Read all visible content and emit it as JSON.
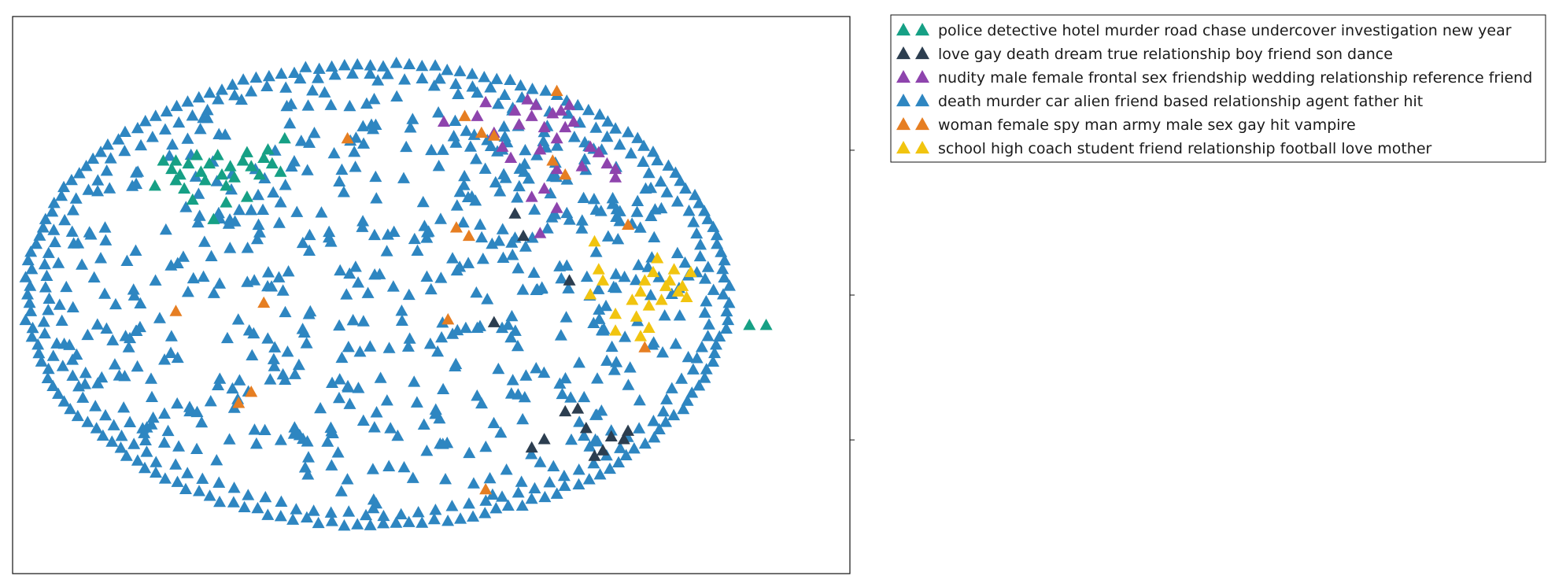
{
  "chart_data": {
    "type": "scatter",
    "marker": "triangle",
    "xlim": [
      -1,
      1
    ],
    "ylim": [
      -1,
      1
    ],
    "xticks": [],
    "yticks": [
      -0.52,
      0.0,
      0.52
    ],
    "grid": false,
    "legend_position": "outside-top-right",
    "ellipse_cluster": {
      "center": [
        -0.13,
        0.0
      ],
      "rx": 0.84,
      "ry": 0.83,
      "series": "death murder car alien friend based relationship agent father hit"
    },
    "series": [
      {
        "name": "police detective hotel murder road chase undercover investigation new year",
        "color": "#16a085",
        "points": [
          [
            -0.64,
            0.48
          ],
          [
            -0.62,
            0.45
          ],
          [
            -0.61,
            0.48
          ],
          [
            -0.6,
            0.43
          ],
          [
            -0.58,
            0.47
          ],
          [
            -0.56,
            0.5
          ],
          [
            -0.55,
            0.44
          ],
          [
            -0.54,
            0.41
          ],
          [
            -0.53,
            0.47
          ],
          [
            -0.51,
            0.5
          ],
          [
            -0.5,
            0.43
          ],
          [
            -0.49,
            0.39
          ],
          [
            -0.48,
            0.46
          ],
          [
            -0.47,
            0.42
          ],
          [
            -0.45,
            0.48
          ],
          [
            -0.44,
            0.51
          ],
          [
            -0.43,
            0.46
          ],
          [
            -0.41,
            0.43
          ],
          [
            -0.4,
            0.49
          ],
          [
            -0.38,
            0.47
          ],
          [
            -0.57,
            0.34
          ],
          [
            -0.59,
            0.38
          ],
          [
            -0.61,
            0.41
          ],
          [
            -0.49,
            0.33
          ],
          [
            -0.52,
            0.27
          ],
          [
            -0.35,
            0.56
          ],
          [
            -0.44,
            0.35
          ],
          [
            -0.66,
            0.39
          ],
          [
            -0.39,
            0.52
          ],
          [
            -0.36,
            0.44
          ],
          [
            0.76,
            -0.11
          ],
          [
            0.8,
            -0.11
          ]
        ]
      },
      {
        "name": "love gay death dream true relationship boy friend son dance",
        "color": "#2c3e50",
        "points": [
          [
            0.2,
            0.29
          ],
          [
            0.22,
            0.21
          ],
          [
            0.33,
            0.05
          ],
          [
            0.15,
            -0.1
          ],
          [
            0.24,
            -0.55
          ],
          [
            0.27,
            -0.52
          ],
          [
            0.32,
            -0.42
          ],
          [
            0.35,
            -0.41
          ],
          [
            0.37,
            -0.48
          ],
          [
            0.39,
            -0.58
          ],
          [
            0.41,
            -0.56
          ],
          [
            0.43,
            -0.51
          ],
          [
            0.46,
            -0.52
          ],
          [
            0.47,
            -0.49
          ]
        ]
      },
      {
        "name": "nudity male female frontal sex friendship wedding relationship reference friend",
        "color": "#8e44ad",
        "points": [
          [
            0.03,
            0.62
          ],
          [
            0.11,
            0.64
          ],
          [
            0.13,
            0.69
          ],
          [
            0.15,
            0.58
          ],
          [
            0.17,
            0.53
          ],
          [
            0.19,
            0.49
          ],
          [
            0.2,
            0.66
          ],
          [
            0.21,
            0.61
          ],
          [
            0.23,
            0.7
          ],
          [
            0.24,
            0.64
          ],
          [
            0.25,
            0.68
          ],
          [
            0.27,
            0.6
          ],
          [
            0.29,
            0.65
          ],
          [
            0.3,
            0.56
          ],
          [
            0.31,
            0.66
          ],
          [
            0.32,
            0.6
          ],
          [
            0.33,
            0.68
          ],
          [
            0.34,
            0.62
          ],
          [
            0.3,
            0.45
          ],
          [
            0.26,
            0.52
          ],
          [
            0.36,
            0.46
          ],
          [
            0.38,
            0.53
          ],
          [
            0.4,
            0.51
          ],
          [
            0.42,
            0.47
          ],
          [
            0.44,
            0.42
          ],
          [
            0.44,
            0.45
          ],
          [
            0.24,
            0.35
          ],
          [
            0.3,
            0.31
          ],
          [
            0.27,
            0.38
          ],
          [
            0.26,
            0.22
          ]
        ]
      },
      {
        "name": "death murder car alien friend based relationship agent father hit",
        "color": "#2e86c1",
        "points": []
      },
      {
        "name": "woman female spy man army male sex gay hit vampire",
        "color": "#e67e22",
        "points": [
          [
            -0.2,
            0.56
          ],
          [
            0.08,
            0.64
          ],
          [
            0.12,
            0.58
          ],
          [
            0.15,
            0.57
          ],
          [
            0.3,
            0.73
          ],
          [
            0.29,
            0.48
          ],
          [
            0.32,
            0.43
          ],
          [
            0.06,
            0.24
          ],
          [
            0.09,
            0.21
          ],
          [
            0.04,
            -0.09
          ],
          [
            0.47,
            0.25
          ],
          [
            0.51,
            -0.19
          ],
          [
            -0.61,
            -0.06
          ],
          [
            -0.4,
            -0.03
          ],
          [
            -0.46,
            -0.39
          ],
          [
            -0.43,
            -0.35
          ],
          [
            0.13,
            -0.7
          ]
        ]
      },
      {
        "name": "school high coach student friend relationship football love mother",
        "color": "#f1c40f",
        "points": [
          [
            0.39,
            0.19
          ],
          [
            0.41,
            0.05
          ],
          [
            0.38,
            0.0
          ],
          [
            0.44,
            -0.07
          ],
          [
            0.44,
            -0.13
          ],
          [
            0.48,
            -0.02
          ],
          [
            0.49,
            -0.08
          ],
          [
            0.5,
            0.01
          ],
          [
            0.51,
            0.05
          ],
          [
            0.52,
            -0.04
          ],
          [
            0.53,
            0.08
          ],
          [
            0.54,
            0.13
          ],
          [
            0.55,
            -0.02
          ],
          [
            0.56,
            0.03
          ],
          [
            0.57,
            0.05
          ],
          [
            0.58,
            0.09
          ],
          [
            0.59,
            0.01
          ],
          [
            0.6,
            0.03
          ],
          [
            0.61,
            -0.01
          ],
          [
            0.62,
            0.08
          ],
          [
            0.5,
            -0.15
          ],
          [
            0.52,
            -0.12
          ],
          [
            0.4,
            0.09
          ]
        ]
      }
    ]
  }
}
